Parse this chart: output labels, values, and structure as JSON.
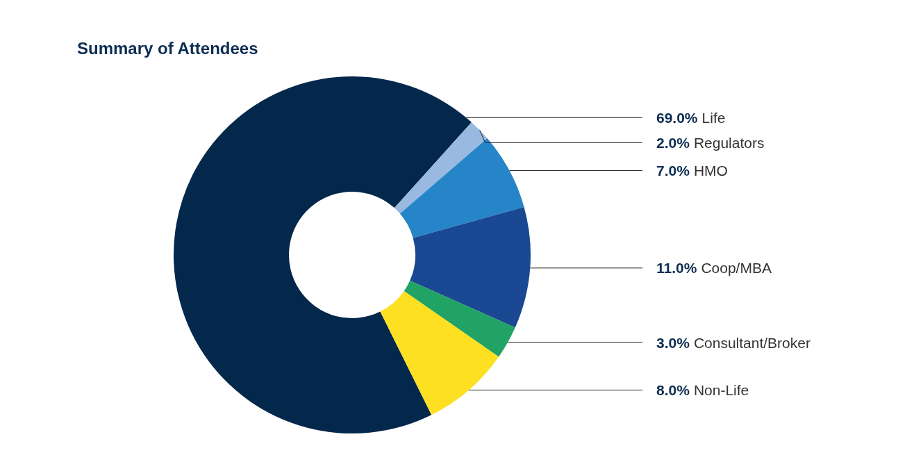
{
  "chart_data": {
    "type": "donut",
    "title": "Summary of Attendees",
    "categories": [
      "Life",
      "Regulators",
      "HMO",
      "Coop/MBA",
      "Consultant/Broker",
      "Non-Life"
    ],
    "values": [
      69,
      2,
      7,
      11,
      3,
      8
    ],
    "value_labels": [
      "69.0%",
      "2.0%",
      "7.0%",
      "11.0%",
      "3.0%",
      "8.0%"
    ],
    "colors": [
      "#03284c",
      "#9ab9e0",
      "#2585c8",
      "#1b4892",
      "#21a366",
      "#fde021"
    ]
  }
}
